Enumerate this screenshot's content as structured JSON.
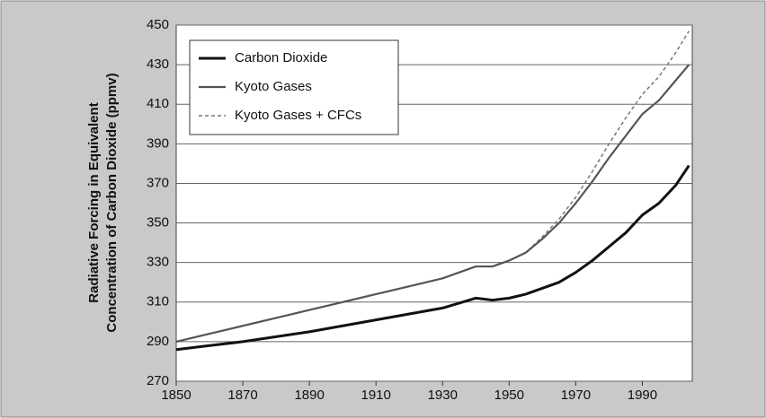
{
  "chart_data": {
    "type": "line",
    "ylabel": [
      "Radiative Forcing in Equivalent",
      "Concentration of Carbon Dioxide (ppmv)"
    ],
    "x": [
      1850,
      1860,
      1870,
      1880,
      1890,
      1900,
      1910,
      1920,
      1930,
      1935,
      1940,
      1945,
      1950,
      1955,
      1960,
      1965,
      1970,
      1975,
      1980,
      1985,
      1990,
      1995,
      2000,
      2004
    ],
    "series": [
      {
        "name": "Carbon Dioxide",
        "color": "#111111",
        "width": 3,
        "dashed": false,
        "values": [
          286,
          288,
          290,
          292.5,
          295,
          298,
          301,
          304,
          307,
          309.5,
          312,
          311,
          312,
          314,
          317,
          320,
          325,
          331,
          338,
          345,
          354,
          360,
          369,
          379
        ]
      },
      {
        "name": "Kyoto Gases",
        "color": "#555555",
        "width": 2.2,
        "dashed": false,
        "values": [
          290,
          294,
          298,
          302,
          306,
          310,
          314,
          318,
          322,
          325,
          328,
          328,
          331,
          335,
          342,
          350,
          360,
          371,
          383,
          394,
          405,
          412,
          422,
          430
        ]
      },
      {
        "name": "Kyoto Gases + CFCs",
        "color": "#777777",
        "width": 1.5,
        "dashed": true,
        "values": [
          290,
          294,
          298,
          302,
          306,
          310,
          314,
          318,
          322,
          325,
          328,
          328,
          331,
          335,
          343,
          352,
          363,
          376,
          390,
          403,
          415,
          424,
          436,
          447
        ]
      }
    ],
    "xlim": [
      1850,
      2005
    ],
    "xticks": [
      1850,
      1870,
      1890,
      1910,
      1930,
      1950,
      1970,
      1990
    ],
    "ylim": [
      270,
      450
    ],
    "yticks": [
      270,
      290,
      310,
      330,
      350,
      370,
      390,
      410,
      430,
      450
    ],
    "grid": true,
    "legend": "top-left"
  }
}
